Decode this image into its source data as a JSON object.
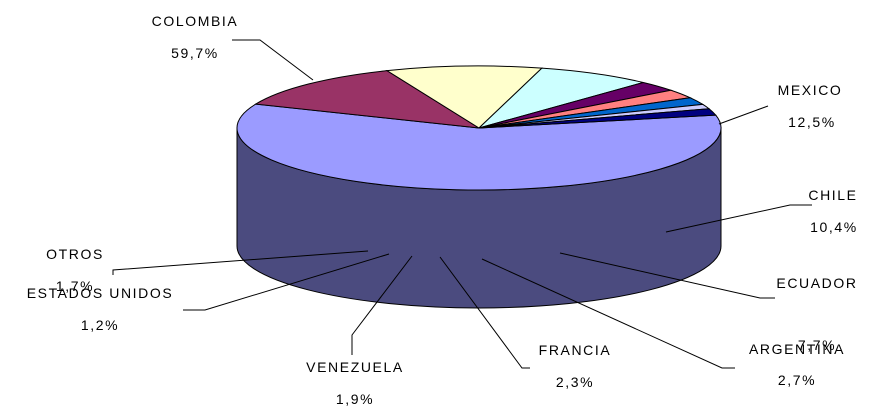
{
  "chart_data": {
    "type": "pie",
    "title": "",
    "style": "3d-pie",
    "legend": "none",
    "slices": [
      {
        "label": "COLOMBIA",
        "value": 59.7,
        "value_text": "59,7%",
        "color": "#9b9bff",
        "side_color": "#4b4b7f"
      },
      {
        "label": "MEXICO",
        "value": 12.5,
        "value_text": "12,5%",
        "color": "#993366",
        "side_color": "#4c1933"
      },
      {
        "label": "CHILE",
        "value": 10.4,
        "value_text": "10,4%",
        "color": "#ffffcc",
        "side_color": "#7f7f66"
      },
      {
        "label": "ECUADOR",
        "value": 7.7,
        "value_text": "7,7%",
        "color": "#ccffff",
        "side_color": "#667f7f"
      },
      {
        "label": "ARGENTINA",
        "value": 2.7,
        "value_text": "2,7%",
        "color": "#660066",
        "side_color": "#330033"
      },
      {
        "label": "FRANCIA",
        "value": 2.3,
        "value_text": "2,3%",
        "color": "#ff8080",
        "side_color": "#7f4040"
      },
      {
        "label": "VENEZUELA",
        "value": 1.9,
        "value_text": "1,9%",
        "color": "#0066cc",
        "side_color": "#003366"
      },
      {
        "label": "ESTADOS UNIDOS",
        "value": 1.2,
        "value_text": "1,2%",
        "color": "#ccccff",
        "side_color": "#66667f"
      },
      {
        "label": "OTROS",
        "value": 1.7,
        "value_text": "1,7%",
        "color": "#000080",
        "side_color": "#000040"
      }
    ]
  }
}
